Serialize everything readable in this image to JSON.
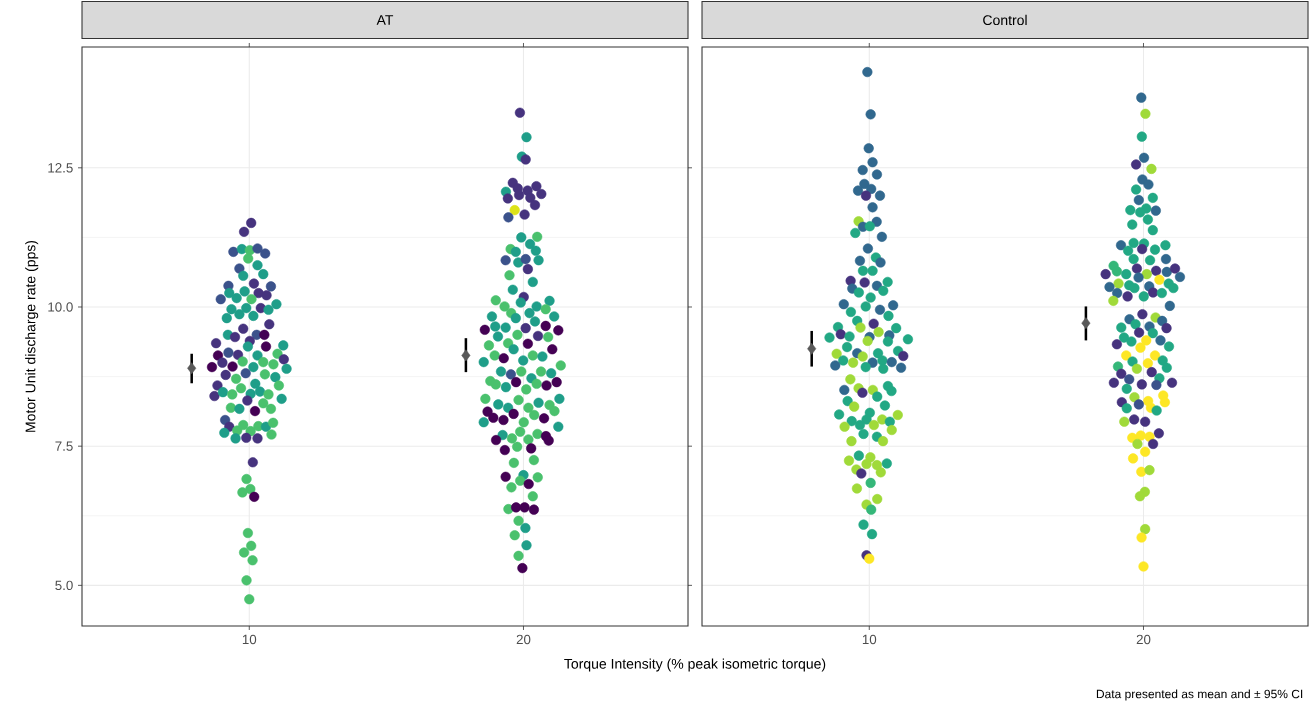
{
  "chart_data": [
    {
      "type": "scatter",
      "title": "AT",
      "xlabel": "Torque Intensity (% peak isometric torque)",
      "ylabel": "Motor Unit discharge rate (pps)",
      "xlim": [
        3.9,
        26
      ],
      "ylim": [
        4.27,
        14.67
      ],
      "xticks": [
        10,
        20
      ],
      "yticks": [
        {
          "value": 5,
          "label": "5.0"
        },
        {
          "value": 7.5,
          "label": "7.5"
        },
        {
          "value": 10,
          "label": "10.0"
        },
        {
          "value": 12.5,
          "label": "12.5"
        }
      ],
      "grid": true,
      "series": [
        {
          "type": "scatter",
          "marker": "circle",
          "x": [
            10.07,
            9.81,
            9.42,
            9.73,
            10.02,
            10.3,
            10.58,
            9.96,
            9.64,
            10.3,
            10.51,
            9.78,
            10.17,
            9.24,
            10.79,
            9.27,
            9.83,
            10.34,
            10.63,
            8.96,
            9.54,
            10.08,
            10.99,
            9.35,
            9.89,
            10.42,
            10.7,
            9.18,
            9.64,
            10.15,
            10.73,
            9.78,
            9.22,
            9.48,
            10.27,
            10.55,
            8.79,
            10.02,
            9.95,
            10.61,
            11.24,
            9.24,
            9.59,
            10.3,
            11.03,
            8.86,
            11.26,
            9.02,
            9.76,
            10.51,
            10.88,
            8.64,
            9.39,
            10.15,
            11.36,
            9.14,
            9.87,
            10.57,
            10.95,
            9.52,
            8.84,
            10.22,
            11.08,
            9.7,
            8.73,
            9.04,
            9.38,
            10.05,
            10.39,
            10.7,
            11.18,
            9.93,
            10.51,
            9.33,
            9.64,
            10.79,
            10.21,
            9.12,
            9.27,
            9.09,
            9.56,
            9.78,
            10.05,
            10.33,
            10.61,
            10.87,
            10.81,
            9.5,
            9.89,
            10.3,
            10.13,
            9.9,
            10.04,
            9.75,
            10.18,
            9.95,
            10.07,
            9.81,
            10.12,
            9.9,
            10.0
          ],
          "values": [
            11.51,
            11.35,
            10.99,
            11.04,
            11.02,
            11.05,
            10.96,
            10.87,
            10.69,
            10.75,
            10.59,
            10.56,
            10.42,
            10.38,
            10.37,
            10.25,
            10.28,
            10.25,
            10.21,
            10.14,
            10.16,
            10.14,
            10.05,
            9.96,
            9.98,
            9.98,
            9.95,
            9.8,
            9.87,
            9.84,
            9.69,
            9.61,
            9.5,
            9.46,
            9.5,
            9.5,
            9.35,
            9.39,
            9.29,
            9.29,
            9.31,
            9.18,
            9.14,
            9.13,
            9.16,
            9.13,
            9.06,
            9.0,
            9.02,
            9.01,
            8.97,
            8.92,
            8.93,
            8.92,
            8.89,
            8.78,
            8.81,
            8.79,
            8.74,
            8.71,
            8.59,
            8.62,
            8.59,
            8.54,
            8.4,
            8.47,
            8.43,
            8.44,
            8.48,
            8.43,
            8.35,
            8.32,
            8.27,
            8.19,
            8.17,
            8.17,
            8.13,
            7.97,
            7.85,
            7.74,
            7.78,
            7.88,
            7.77,
            7.86,
            7.85,
            7.92,
            7.71,
            7.64,
            7.65,
            7.64,
            7.21,
            6.91,
            6.73,
            6.67,
            6.59,
            5.94,
            5.71,
            5.59,
            5.45,
            5.09,
            4.75
          ],
          "colors": [
            "#46337e",
            "#46337e",
            "#3b528b",
            "#1f9e89",
            "#4ac16d",
            "#3b528b",
            "#3b528b",
            "#4ac16d",
            "#3b528b",
            "#1f9e89",
            "#1f9e89",
            "#1f9e89",
            "#46337e",
            "#3b528b",
            "#3b528b",
            "#1f9e89",
            "#1f9e89",
            "#46337e",
            "#46337e",
            "#3b528b",
            "#1f9e89",
            "#4ac16d",
            "#1f9e89",
            "#1f9e89",
            "#1f9e89",
            "#46337e",
            "#1f9e89",
            "#1f9e89",
            "#1f9e89",
            "#1f9e89",
            "#46337e",
            "#46337e",
            "#1f9e89",
            "#46337e",
            "#3b528b",
            "#440154",
            "#46337e",
            "#46337e",
            "#1f9e89",
            "#440154",
            "#1f9e89",
            "#3b528b",
            "#46337e",
            "#1f9e89",
            "#4ac16d",
            "#440154",
            "#46337e",
            "#46337e",
            "#4ac16d",
            "#4ac16d",
            "#4ac16d",
            "#440154",
            "#440154",
            "#1f9e89",
            "#1f9e89",
            "#46337e",
            "#3b528b",
            "#4ac16d",
            "#1f9e89",
            "#4ac16d",
            "#46337e",
            "#1f9e89",
            "#4ac16d",
            "#4ac16d",
            "#46337e",
            "#1f9e89",
            "#4ac16d",
            "#1f9e89",
            "#1f9e89",
            "#4ac16d",
            "#1f9e89",
            "#46337e",
            "#4ac16d",
            "#4ac16d",
            "#1f9e89",
            "#4ac16d",
            "#440154",
            "#3b528b",
            "#46337e",
            "#1f9e89",
            "#4ac16d",
            "#4ac16d",
            "#4ac16d",
            "#4ac16d",
            "#1f9e89",
            "#4ac16d",
            "#4ac16d",
            "#1f9e89",
            "#46337e",
            "#46337e",
            "#46337e",
            "#4ac16d",
            "#4ac16d",
            "#4ac16d",
            "#440154",
            "#4ac16d",
            "#4ac16d",
            "#4ac16d",
            "#4ac16d",
            "#4ac16d",
            "#4ac16d"
          ]
        },
        {
          "type": "scatter",
          "marker": "circle",
          "x": [
            19.87,
            20.11,
            19.94,
            20.08,
            19.61,
            19.36,
            19.79,
            20.15,
            20.47,
            20.65,
            19.43,
            19.84,
            20.25,
            20.42,
            19.68,
            19.45,
            20.04,
            19.92,
            20.5,
            20.24,
            19.53,
            19.72,
            20.45,
            19.35,
            19.81,
            20.08,
            20.55,
            20.16,
            19.49,
            20.34,
            19.61,
            20.01,
            18.99,
            19.9,
            20.95,
            19.31,
            20.48,
            20.81,
            19.55,
            18.85,
            19.72,
            20.22,
            21.12,
            20.42,
            18.59,
            18.97,
            19.35,
            20.08,
            20.81,
            21.27,
            19.07,
            19.78,
            20.53,
            20.9,
            20.16,
            18.74,
            19.44,
            21.05,
            19.64,
            18.95,
            19.28,
            20.34,
            20.69,
            18.55,
            19.99,
            21.36,
            19.18,
            19.92,
            20.64,
            19.54,
            21.01,
            18.79,
            19.73,
            20.29,
            21.21,
            18.99,
            20.48,
            19.36,
            20.84,
            20.1,
            18.61,
            19.82,
            21.31,
            19.08,
            20.55,
            20.95,
            18.69,
            19.44,
            20.18,
            21.13,
            19.64,
            18.9,
            19.27,
            20.39,
            20.75,
            18.55,
            20.01,
            21.27,
            19.88,
            20.51,
            19.24,
            20.82,
            19.0,
            19.58,
            20.18,
            20.92,
            19.77,
            19.32,
            20.28,
            19.65,
            20.38,
            20.0,
            19.35,
            20.52,
            19.88,
            20.19,
            19.56,
            20.34,
            19.45,
            19.73,
            20.04,
            20.38,
            19.82,
            20.07,
            19.68,
            20.11,
            19.82,
            19.96
          ],
          "values": [
            13.49,
            13.05,
            12.7,
            12.65,
            12.23,
            12.07,
            12.13,
            12.09,
            12.17,
            12.03,
            11.95,
            12.01,
            11.96,
            11.83,
            11.74,
            11.61,
            11.66,
            11.25,
            11.26,
            11.13,
            11.04,
            10.99,
            11.01,
            10.84,
            10.8,
            10.86,
            10.84,
            10.68,
            10.57,
            10.45,
            10.31,
            10.18,
            10.12,
            10.08,
            10.11,
            10.01,
            10.01,
            9.96,
            9.89,
            9.83,
            9.8,
            9.89,
            9.83,
            9.74,
            9.59,
            9.65,
            9.63,
            9.62,
            9.66,
            9.58,
            9.47,
            9.5,
            9.48,
            9.46,
            9.34,
            9.31,
            9.35,
            9.24,
            9.24,
            9.13,
            9.08,
            9.13,
            9.11,
            9.01,
            9.04,
            8.95,
            8.84,
            8.84,
            8.84,
            8.79,
            8.81,
            8.67,
            8.65,
            8.72,
            8.65,
            8.61,
            8.62,
            8.56,
            8.59,
            8.52,
            8.35,
            8.33,
            8.35,
            8.25,
            8.28,
            8.24,
            8.12,
            8.19,
            8.19,
            8.13,
            8.08,
            8.01,
            7.97,
            8.06,
            8.0,
            7.93,
            7.93,
            7.85,
            7.76,
            7.72,
            7.7,
            7.68,
            7.61,
            7.64,
            7.62,
            7.6,
            7.49,
            7.43,
            7.46,
            7.2,
            7.25,
            6.98,
            6.95,
            6.94,
            6.88,
            6.82,
            6.76,
            6.6,
            6.37,
            6.4,
            6.4,
            6.36,
            6.16,
            6.03,
            5.9,
            5.72,
            5.53,
            5.31
          ],
          "colors": [
            "#46337e",
            "#1f9e89",
            "#1f9e89",
            "#46337e",
            "#46337e",
            "#1f9e89",
            "#46337e",
            "#46337e",
            "#46337e",
            "#46337e",
            "#46337e",
            "#46337e",
            "#46337e",
            "#46337e",
            "#dde318",
            "#3b528b",
            "#46337e",
            "#1f9e89",
            "#4ac16d",
            "#1f9e89",
            "#4ac16d",
            "#1f9e89",
            "#1f9e89",
            "#3b528b",
            "#1f9e89",
            "#3b528b",
            "#1f9e89",
            "#46337e",
            "#4ac16d",
            "#1f9e89",
            "#1f9e89",
            "#46337e",
            "#4ac16d",
            "#1f9e89",
            "#1f9e89",
            "#4ac16d",
            "#1f9e89",
            "#4ac16d",
            "#4ac16d",
            "#1f9e89",
            "#1f9e89",
            "#1f9e89",
            "#1f9e89",
            "#1f9e89",
            "#440154",
            "#1f9e89",
            "#1f9e89",
            "#46337e",
            "#440154",
            "#440154",
            "#1f9e89",
            "#4ac16d",
            "#46337e",
            "#4ac16d",
            "#440154",
            "#4ac16d",
            "#4ac16d",
            "#440154",
            "#1f9e89",
            "#4ac16d",
            "#440154",
            "#4ac16d",
            "#1f9e89",
            "#1f9e89",
            "#1f9e89",
            "#4ac16d",
            "#1f9e89",
            "#4ac16d",
            "#4ac16d",
            "#3b528b",
            "#1f9e89",
            "#4ac16d",
            "#440154",
            "#1f9e89",
            "#440154",
            "#4ac16d",
            "#4ac16d",
            "#1f9e89",
            "#440154",
            "#4ac16d",
            "#4ac16d",
            "#4ac16d",
            "#1f9e89",
            "#1f9e89",
            "#1f9e89",
            "#4ac16d",
            "#440154",
            "#1f9e89",
            "#4ac16d",
            "#4ac16d",
            "#440154",
            "#440154",
            "#440154",
            "#4ac16d",
            "#440154",
            "#1f9e89",
            "#4ac16d",
            "#1f9e89",
            "#4ac16d",
            "#4ac16d",
            "#1f9e89",
            "#440154",
            "#440154",
            "#4ac16d",
            "#4ac16d",
            "#440154",
            "#4ac16d",
            "#440154",
            "#440154",
            "#4ac16d",
            "#4ac16d",
            "#1f9e89",
            "#440154",
            "#4ac16d",
            "#4ac16d",
            "#440154",
            "#4ac16d",
            "#4ac16d",
            "#4ac16d",
            "#440154",
            "#440154",
            "#440154",
            "#4ac16d",
            "#1f9e89",
            "#4ac16d",
            "#1f9e89",
            "#4ac16d",
            "#440154"
          ]
        },
        {
          "type": "scatter",
          "marker": "diamond",
          "color": "#595959",
          "x": [
            7.9,
            17.9
          ],
          "values": [
            8.9,
            9.13
          ],
          "errors": [
            [
              8.63,
              9.16
            ],
            [
              8.83,
              9.44
            ]
          ]
        }
      ]
    },
    {
      "type": "scatter",
      "title": "Control",
      "annotations": [
        "Data presented as mean and ± 95% CI"
      ],
      "xlim": [
        3.9,
        26
      ],
      "ylim": [
        4.27,
        14.67
      ],
      "xticks": [
        10,
        20
      ],
      "yticks": [
        5,
        7.5,
        10,
        12.5
      ],
      "grid": true,
      "tick_labels": "x",
      "series": [
        {
          "type": "scatter",
          "marker": "circle",
          "x": [
            9.93,
            10.05,
            9.98,
            10.12,
            9.76,
            10.28,
            9.82,
            9.59,
            10.07,
            10.39,
            9.88,
            10.12,
            9.61,
            10.27,
            9.77,
            10.02,
            9.49,
            10.46,
            9.95,
            10.24,
            9.66,
            10.41,
            9.77,
            10.12,
            9.32,
            9.83,
            10.67,
            9.38,
            9.62,
            10.28,
            10.51,
            10.05,
            9.07,
            9.87,
            10.39,
            10.87,
            9.33,
            10.7,
            9.56,
            10.16,
            8.86,
            9.68,
            10.98,
            10.34,
            8.96,
            8.55,
            9.28,
            10.01,
            10.73,
            11.41,
            9.94,
            10.68,
            9.19,
            8.81,
            9.56,
            10.32,
            11.05,
            11.24,
            9.76,
            9.05,
            9.41,
            10.12,
            10.48,
            8.76,
            9.87,
            10.51,
            10.82,
            11.16,
            9.31,
            9.09,
            9.61,
            9.75,
            10.13,
            10.68,
            10.81,
            10.29,
            9.21,
            9.45,
            10.57,
            8.9,
            10.02,
            11.04,
            9.36,
            9.9,
            10.47,
            10.75,
            9.1,
            9.66,
            10.17,
            10.82,
            9.79,
            10.28,
            9.35,
            10.5,
            9.62,
            9.26,
            10.04,
            9.9,
            10.28,
            10.64,
            9.53,
            10.42,
            9.71,
            10.05,
            9.55,
            10.29,
            9.9,
            10.07,
            9.79,
            10.1,
            9.9,
            10.0
          ],
          "values": [
            14.22,
            13.46,
            12.85,
            12.6,
            12.46,
            12.38,
            12.21,
            12.09,
            12.12,
            12.0,
            12.0,
            11.79,
            11.54,
            11.53,
            11.44,
            11.45,
            11.33,
            11.26,
            11.05,
            10.89,
            10.83,
            10.8,
            10.65,
            10.65,
            10.47,
            10.44,
            10.45,
            10.33,
            10.26,
            10.38,
            10.29,
            10.17,
            10.05,
            10.01,
            9.95,
            10.03,
            9.91,
            9.84,
            9.75,
            9.7,
            9.64,
            9.63,
            9.62,
            9.55,
            9.51,
            9.45,
            9.47,
            9.46,
            9.49,
            9.42,
            9.39,
            9.38,
            9.28,
            9.16,
            9.17,
            9.17,
            9.21,
            9.12,
            9.11,
            9.04,
            9.0,
            9.0,
            9.04,
            8.95,
            8.92,
            8.89,
            9.01,
            8.91,
            8.7,
            8.51,
            8.54,
            8.46,
            8.51,
            8.58,
            8.49,
            8.39,
            8.31,
            8.21,
            8.23,
            8.07,
            8.1,
            8.06,
            7.95,
            7.98,
            7.98,
            7.94,
            7.85,
            7.88,
            7.88,
            7.79,
            7.72,
            7.67,
            7.59,
            7.59,
            7.33,
            7.24,
            7.3,
            7.18,
            7.16,
            7.19,
            7.08,
            7.03,
            7.01,
            6.84,
            6.74,
            6.55,
            6.45,
            6.36,
            6.09,
            5.92,
            5.54,
            5.48
          ],
          "colors": [
            "#31688e",
            "#31688e",
            "#31688e",
            "#31688e",
            "#31688e",
            "#31688e",
            "#31688e",
            "#31688e",
            "#31688e",
            "#31688e",
            "#46337e",
            "#31688e",
            "#a0da39",
            "#31688e",
            "#31688e",
            "#22a884",
            "#22a884",
            "#31688e",
            "#31688e",
            "#22a884",
            "#31688e",
            "#31688e",
            "#22a884",
            "#22a884",
            "#46337e",
            "#46337e",
            "#22a884",
            "#31688e",
            "#22a884",
            "#31688e",
            "#22a884",
            "#22a884",
            "#31688e",
            "#22a884",
            "#31688e",
            "#31688e",
            "#22a884",
            "#22a884",
            "#22a884",
            "#46337e",
            "#22a884",
            "#a0da39",
            "#22a884",
            "#a0da39",
            "#46337e",
            "#22a884",
            "#22a884",
            "#31688e",
            "#31688e",
            "#22a884",
            "#a0da39",
            "#22a884",
            "#22a884",
            "#a0da39",
            "#31688e",
            "#22a884",
            "#22a884",
            "#46337e",
            "#a0da39",
            "#22a884",
            "#a0da39",
            "#31688e",
            "#22a884",
            "#31688e",
            "#22a884",
            "#22a884",
            "#31688e",
            "#31688e",
            "#a0da39",
            "#31688e",
            "#a0da39",
            "#46337e",
            "#a0da39",
            "#22a884",
            "#22a884",
            "#22a884",
            "#22a884",
            "#a0da39",
            "#22a884",
            "#22a884",
            "#22a884",
            "#a0da39",
            "#22a884",
            "#22a884",
            "#a0da39",
            "#22a884",
            "#a0da39",
            "#22a884",
            "#a0da39",
            "#a0da39",
            "#22a884",
            "#22a884",
            "#a0da39",
            "#a0da39",
            "#22a884",
            "#a0da39",
            "#a0da39",
            "#a0da39",
            "#a0da39",
            "#22a884",
            "#a0da39",
            "#a0da39",
            "#46337e",
            "#35b779",
            "#a0da39",
            "#a0da39",
            "#a0da39",
            "#35b779",
            "#22a884",
            "#22a884",
            "#46337e",
            "#fde725"
          ]
        },
        {
          "type": "scatter",
          "marker": "circle",
          "x": [
            19.92,
            20.07,
            19.94,
            20.02,
            19.73,
            20.29,
            19.96,
            20.18,
            19.73,
            20.34,
            19.83,
            19.52,
            20.1,
            20.45,
            19.88,
            20.16,
            19.59,
            20.34,
            19.18,
            19.64,
            20.02,
            20.8,
            19.44,
            19.95,
            20.42,
            19.64,
            20.24,
            20.82,
            18.91,
            19.76,
            19.03,
            20.46,
            20.85,
            21.15,
            18.62,
            19.37,
            20.12,
            21.33,
            19.82,
            20.58,
            19.09,
            19.48,
            20.92,
            18.76,
            19.67,
            20.21,
            21.09,
            19.04,
            20.35,
            20.67,
            19.42,
            20.01,
            18.9,
            20.96,
            19.96,
            20.44,
            19.49,
            20.68,
            19.71,
            20.22,
            19.19,
            20.84,
            19.84,
            20.34,
            19.29,
            19.56,
            20.1,
            19.03,
            19.89,
            20.62,
            20.93,
            19.37,
            20.42,
            19.6,
            20.16,
            20.7,
            19.07,
            19.76,
            20.85,
            20.3,
            19.19,
            20.58,
            19.48,
            18.92,
            19.94,
            20.47,
            21.04,
            19.39,
            20.72,
            19.67,
            19.21,
            20.17,
            20.78,
            19.83,
            19.39,
            20.27,
            20.48,
            19.66,
            19.3,
            20.06,
            20.56,
            19.59,
            19.9,
            20.22,
            19.78,
            20.35,
            20.06,
            19.62,
            19.92,
            20.22,
            20.05,
            19.87,
            20.06,
            19.93,
            20.0
          ],
          "values": [
            13.76,
            13.47,
            13.06,
            12.68,
            12.56,
            12.48,
            12.29,
            12.2,
            12.11,
            11.96,
            11.92,
            11.74,
            11.77,
            11.73,
            11.7,
            11.57,
            11.48,
            11.38,
            11.11,
            11.15,
            11.14,
            11.11,
            11.01,
            11.04,
            11.03,
            10.86,
            10.84,
            10.86,
            10.74,
            10.69,
            10.64,
            10.65,
            10.63,
            10.69,
            10.59,
            10.59,
            10.59,
            10.54,
            10.53,
            10.49,
            10.42,
            10.39,
            10.42,
            10.36,
            10.34,
            10.37,
            10.34,
            10.25,
            10.26,
            10.25,
            10.19,
            10.19,
            10.11,
            10.02,
            9.87,
            9.81,
            9.78,
            9.75,
            9.69,
            9.65,
            9.63,
            9.62,
            9.54,
            9.53,
            9.45,
            9.38,
            9.4,
            9.33,
            9.27,
            9.4,
            9.29,
            9.13,
            9.13,
            9.02,
            8.99,
            9.04,
            8.93,
            8.89,
            8.91,
            8.83,
            8.8,
            8.72,
            8.7,
            8.64,
            8.61,
            8.6,
            8.64,
            8.53,
            8.41,
            8.38,
            8.29,
            8.31,
            8.29,
            8.25,
            8.18,
            8.19,
            8.14,
            7.98,
            7.94,
            7.94,
            7.73,
            7.65,
            7.69,
            7.67,
            7.54,
            7.54,
            7.4,
            7.28,
            7.04,
            7.07,
            6.68,
            6.6,
            6.01,
            5.86,
            5.34
          ],
          "colors": [
            "#31688e",
            "#a0da39",
            "#22a884",
            "#31688e",
            "#46337e",
            "#a0da39",
            "#31688e",
            "#31688e",
            "#22a884",
            "#22a884",
            "#31688e",
            "#22a884",
            "#22a884",
            "#31688e",
            "#22a884",
            "#22a884",
            "#22a884",
            "#22a884",
            "#31688e",
            "#22a884",
            "#22a884",
            "#22a884",
            "#22a884",
            "#46337e",
            "#22a884",
            "#22a884",
            "#22a884",
            "#31688e",
            "#35b779",
            "#46337e",
            "#35b779",
            "#46337e",
            "#31688e",
            "#46337e",
            "#46337e",
            "#22a884",
            "#a0da39",
            "#31688e",
            "#31688e",
            "#fde725",
            "#a0da39",
            "#22a884",
            "#22a884",
            "#31688e",
            "#22a884",
            "#31688e",
            "#22a884",
            "#31688e",
            "#46337e",
            "#22a884",
            "#46337e",
            "#22a884",
            "#a0da39",
            "#31688e",
            "#46337e",
            "#a0da39",
            "#31688e",
            "#31688e",
            "#22a884",
            "#31688e",
            "#22a884",
            "#46337e",
            "#46337e",
            "#22a884",
            "#22a884",
            "#22a884",
            "#fde725",
            "#46337e",
            "#fde725",
            "#31688e",
            "#22a884",
            "#fde725",
            "#fde725",
            "#22a884",
            "#fde725",
            "#22a884",
            "#35b779",
            "#a0da39",
            "#22a884",
            "#46337e",
            "#46337e",
            "#22a884",
            "#3b528b",
            "#46337e",
            "#46337e",
            "#3b528b",
            "#46337e",
            "#22a884",
            "#fde725",
            "#a0da39",
            "#46337e",
            "#fde725",
            "#fde725",
            "#3b528b",
            "#22a884",
            "#fde725",
            "#22a884",
            "#46337e",
            "#a0da39",
            "#46337e",
            "#46337e",
            "#fde725",
            "#fde725",
            "#fde725",
            "#a0da39",
            "#46337e",
            "#fde725",
            "#fde725",
            "#fde725",
            "#a0da39",
            "#a0da39",
            "#a0da39",
            "#a0da39",
            "#fde725",
            "#fde725"
          ]
        },
        {
          "type": "scatter",
          "marker": "diamond",
          "color": "#595959",
          "x": [
            7.9,
            17.9
          ],
          "values": [
            9.25,
            9.71
          ],
          "errors": [
            [
              8.93,
              9.57
            ],
            [
              9.4,
              10.01
            ]
          ]
        }
      ]
    }
  ]
}
